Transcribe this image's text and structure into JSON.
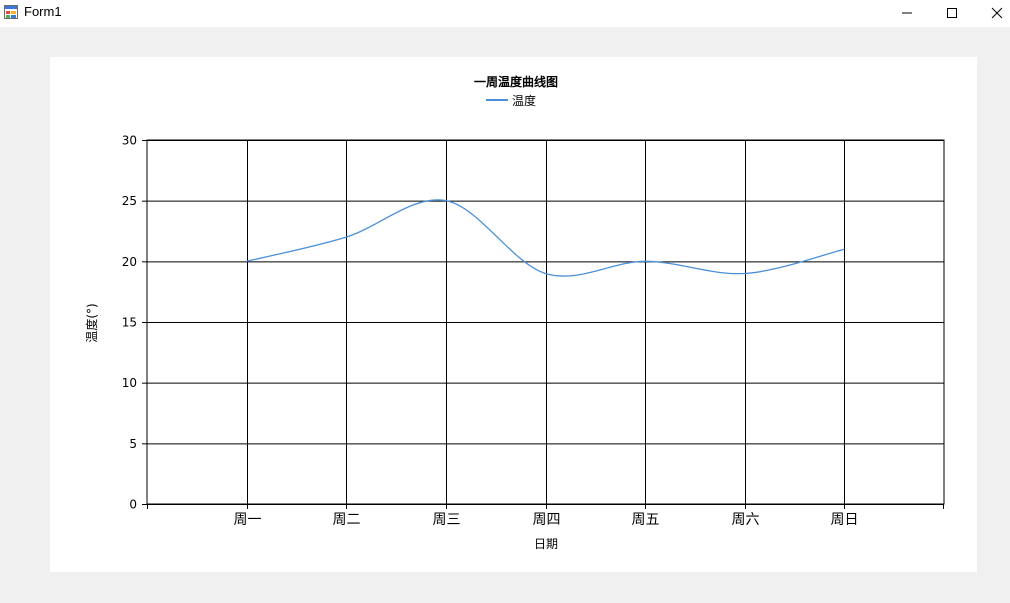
{
  "window": {
    "title": "Form1",
    "icon": "form-app-icon",
    "buttons": [
      "minimize-icon",
      "maximize-icon",
      "close-icon"
    ]
  },
  "chart_data": {
    "type": "line",
    "title": "一周温度曲线图",
    "xlabel": "日期",
    "ylabel": "温度(°)",
    "categories": [
      "周一",
      "周二",
      "周三",
      "周四",
      "周五",
      "周六",
      "周日"
    ],
    "series": [
      {
        "name": "温度",
        "values": [
          20,
          22,
          25,
          19,
          20,
          19,
          21
        ],
        "color": "#4a90d9",
        "smooth": true
      }
    ],
    "ylim": [
      0,
      30
    ],
    "yticks": [
      0,
      5,
      10,
      15,
      20,
      25,
      30
    ],
    "grid": true,
    "legend": "top-center"
  }
}
